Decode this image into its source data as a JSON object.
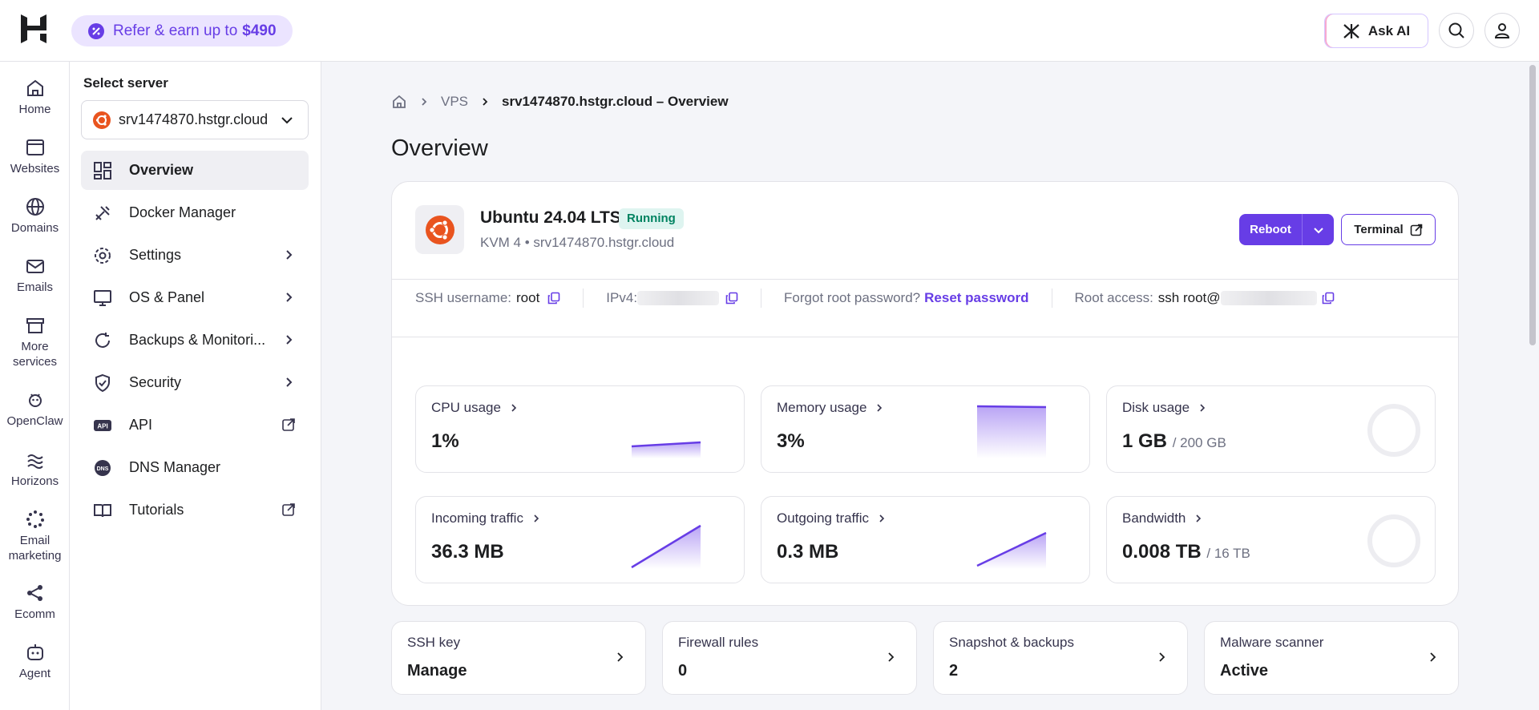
{
  "topbar": {
    "refer_text": "Refer & earn up to",
    "refer_amount": "$490",
    "ask_ai": "Ask AI"
  },
  "rail": [
    {
      "label": "Home",
      "icon": "home-icon"
    },
    {
      "label": "Websites",
      "icon": "websites-icon"
    },
    {
      "label": "Domains",
      "icon": "globe-icon"
    },
    {
      "label": "Emails",
      "icon": "mail-icon"
    },
    {
      "label": "More services",
      "icon": "store-icon"
    },
    {
      "label": "OpenClaw",
      "icon": "openclaw-icon"
    },
    {
      "label": "Horizons",
      "icon": "horizons-icon"
    },
    {
      "label": "Email marketing",
      "icon": "email-marketing-icon"
    },
    {
      "label": "Ecomm",
      "icon": "ecomm-icon"
    },
    {
      "label": "Agent",
      "icon": "agent-icon"
    }
  ],
  "sidebar": {
    "select_label": "Select server",
    "selected_server": "srv1474870.hstgr.cloud",
    "items": [
      {
        "label": "Overview",
        "icon": "overview-icon",
        "active": true
      },
      {
        "label": "Docker Manager",
        "icon": "docker-icon"
      },
      {
        "label": "Settings",
        "icon": "gear-icon"
      },
      {
        "label": "OS & Panel",
        "icon": "monitor-icon"
      },
      {
        "label": "Backups & Monitori...",
        "icon": "backup-icon"
      },
      {
        "label": "Security",
        "icon": "shield-icon"
      },
      {
        "label": "API",
        "icon": "api-icon"
      },
      {
        "label": "DNS Manager",
        "icon": "dns-icon"
      },
      {
        "label": "Tutorials",
        "icon": "book-icon"
      }
    ]
  },
  "breadcrumb": {
    "vps": "VPS",
    "current": "srv1474870.hstgr.cloud – Overview"
  },
  "page_title": "Overview",
  "server": {
    "os_name": "Ubuntu 24.04 LTS",
    "status": "Running",
    "subtitle": "KVM 4 • srv1474870.hstgr.cloud",
    "reboot": "Reboot",
    "terminal": "Terminal"
  },
  "info": {
    "ssh_label": "SSH username:",
    "ssh_value": "root",
    "ipv4_label": "IPv4:",
    "forgot_label": "Forgot root password?",
    "reset_link": "Reset password",
    "root_label": "Root access:",
    "root_value": "ssh root@"
  },
  "metrics": {
    "cpu": {
      "label": "CPU usage",
      "value": "1%"
    },
    "memory": {
      "label": "Memory usage",
      "value": "3%"
    },
    "disk": {
      "label": "Disk usage",
      "value": "1 GB",
      "total": "/ 200 GB"
    },
    "incoming": {
      "label": "Incoming traffic",
      "value": "36.3 MB"
    },
    "outgoing": {
      "label": "Outgoing traffic",
      "value": "0.3 MB"
    },
    "bandwidth": {
      "label": "Bandwidth",
      "value": "0.008 TB",
      "total": "/ 16 TB"
    }
  },
  "bottom_cards": [
    {
      "title": "SSH key",
      "value": "Manage"
    },
    {
      "title": "Firewall rules",
      "value": "0"
    },
    {
      "title": "Snapshot & backups",
      "value": "2"
    },
    {
      "title": "Malware scanner",
      "value": "Active"
    }
  ],
  "colors": {
    "accent": "#673de6",
    "running_bg": "#def4f0",
    "running_text": "#008361",
    "ubuntu": "#e9541f"
  }
}
